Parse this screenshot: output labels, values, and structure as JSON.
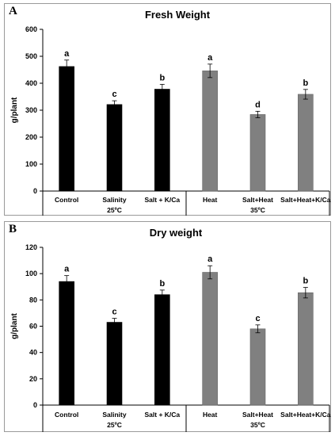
{
  "chart_data": [
    {
      "panel": "A",
      "type": "bar",
      "title": "Fresh Weight",
      "ylabel": "g/plant",
      "xlabel": "",
      "ylim": [
        0,
        600
      ],
      "yticks": [
        0,
        100,
        200,
        300,
        400,
        500,
        600
      ],
      "categories": [
        "Control",
        "Salinity",
        "Salt + K/Ca",
        "Heat",
        "Salt+Heat",
        "Salt+Heat+K/Ca"
      ],
      "values": [
        462,
        321,
        378,
        446,
        284,
        359
      ],
      "errors": [
        24,
        14,
        18,
        25,
        12,
        18
      ],
      "letters": [
        "a",
        "c",
        "b",
        "a",
        "d",
        "b"
      ],
      "groups": [
        {
          "label": "25ºC",
          "categories": [
            "Control",
            "Salinity",
            "Salt + K/Ca"
          ],
          "color": "#000000"
        },
        {
          "label": "35ºC",
          "categories": [
            "Heat",
            "Salt+Heat",
            "Salt+Heat+K/Ca"
          ],
          "color": "#808080"
        }
      ],
      "grid": false,
      "legend": "none"
    },
    {
      "panel": "B",
      "type": "bar",
      "title": "Dry weight",
      "ylabel": "g/plant",
      "xlabel": "",
      "ylim": [
        0,
        120
      ],
      "yticks": [
        0,
        20,
        40,
        60,
        80,
        100,
        120
      ],
      "categories": [
        "Control",
        "Salinity",
        "Salt + K/Ca",
        "Heat",
        "Salt+Heat",
        "Salt+Heat+K/Ca"
      ],
      "values": [
        94,
        63,
        84,
        101,
        58,
        85.5
      ],
      "errors": [
        4.5,
        3,
        3.5,
        5,
        3,
        4
      ],
      "letters": [
        "a",
        "c",
        "b",
        "a",
        "c",
        "b"
      ],
      "groups": [
        {
          "label": "25ºC",
          "categories": [
            "Control",
            "Salinity",
            "Salt + K/Ca"
          ],
          "color": "#000000"
        },
        {
          "label": "35ºC",
          "categories": [
            "Heat",
            "Salt+Heat",
            "Salt+Heat+K/Ca"
          ],
          "color": "#808080"
        }
      ],
      "grid": false,
      "legend": "none"
    }
  ],
  "panels": [
    {
      "letter": "A"
    },
    {
      "letter": "B"
    }
  ]
}
